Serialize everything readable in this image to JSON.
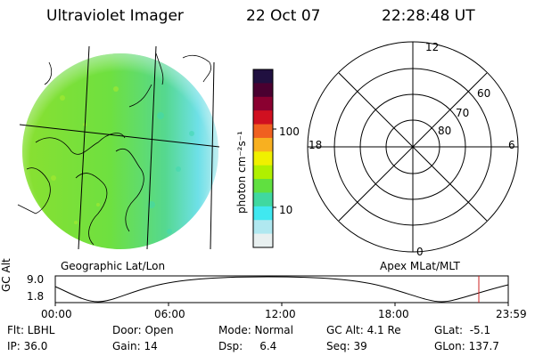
{
  "header": {
    "instrument": "Ultraviolet Imager",
    "date": "22 Oct 07",
    "time": "22:28:48 UT"
  },
  "colorbar": {
    "unit_label": "photon cm⁻²s⁻¹",
    "ticks": [
      "100",
      "10"
    ],
    "scale": "log",
    "colors_top_to_bottom": [
      "#201040",
      "#4a0030",
      "#8a0030",
      "#d01020",
      "#f06020",
      "#f8b020",
      "#f0f000",
      "#b0f000",
      "#60e040",
      "#40d8a0",
      "#40e8f0",
      "#b0e8f0",
      "#e8f0f0"
    ]
  },
  "panels": {
    "left_label": "Geographic Lat/Lon",
    "right_label": "Apex MLat/MLT"
  },
  "polar": {
    "mlt_labels": [
      "12",
      "18",
      "6",
      "0"
    ],
    "mlat_labels": [
      "60",
      "70",
      "80"
    ]
  },
  "altitude_plot": {
    "ylabel": "GC Alt",
    "y_ticks": [
      "9.0",
      "1.8"
    ],
    "x_ticks": [
      "00:00",
      "06:00",
      "12:00",
      "18:00",
      "23:59"
    ],
    "marker_color": "#cc2020"
  },
  "status": {
    "flt": "Flt: LBHL",
    "door": "Door: Open",
    "mode": "Mode: Normal",
    "gc_alt": "GC Alt: 4.1 Re",
    "glat": "GLat:  -5.1",
    "ip": "IP: 36.0",
    "gain": "Gain: 14",
    "dsp": "Dsp:     6.4",
    "seq": "Seq: 39",
    "glon": "GLon: 137.7"
  }
}
